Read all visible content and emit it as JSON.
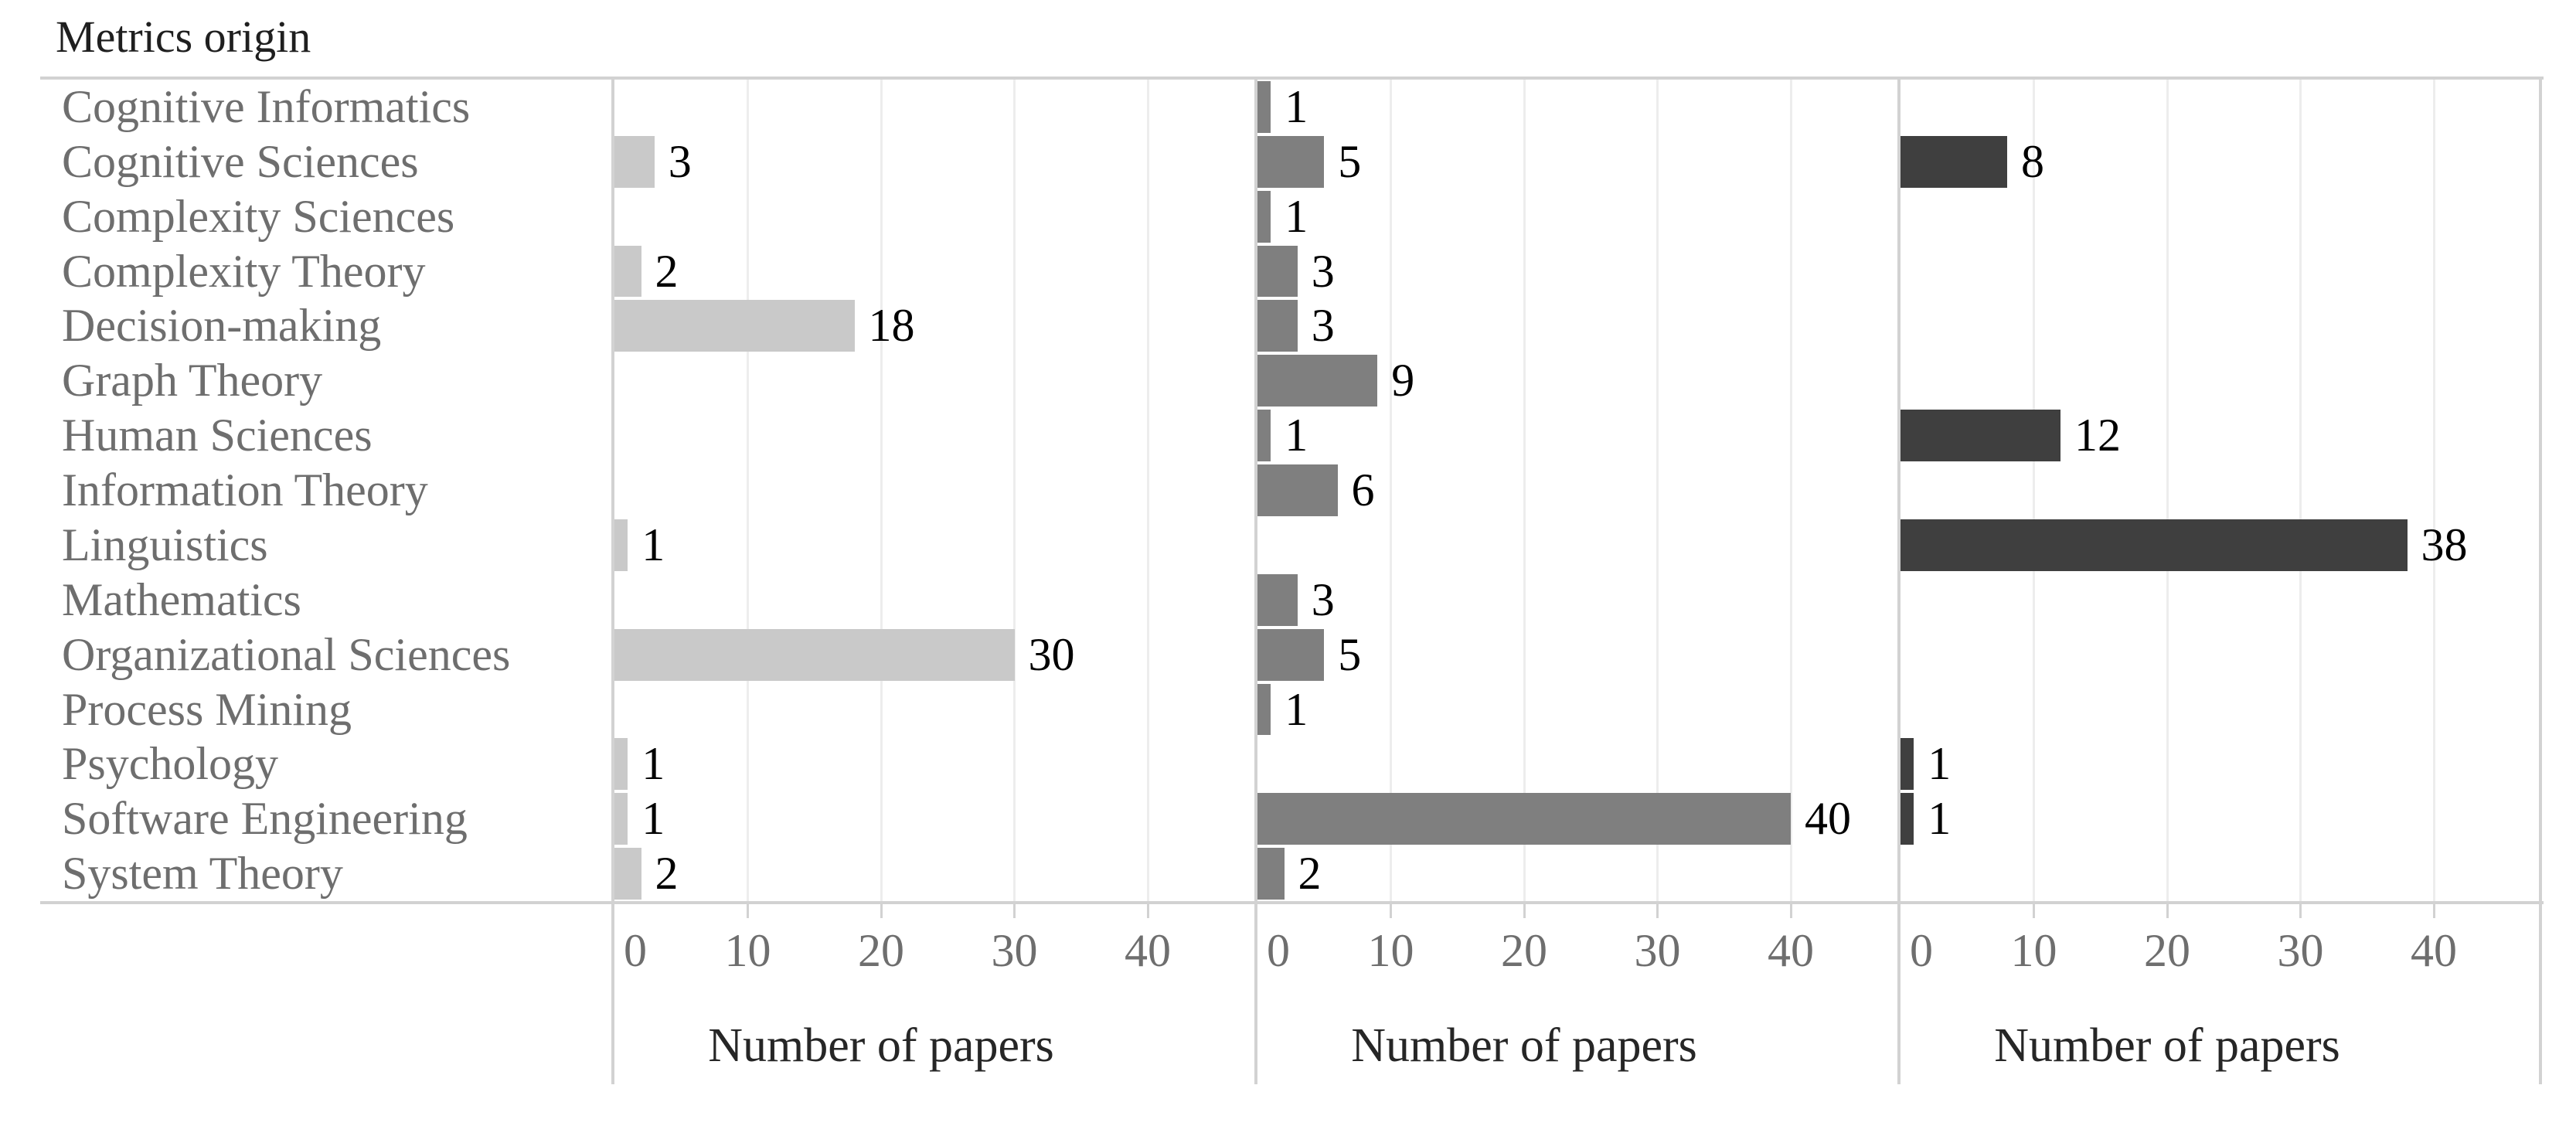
{
  "title": "Metrics origin",
  "chart_data": {
    "type": "bar",
    "orientation": "horizontal",
    "title": "Metrics origin",
    "categories": [
      "Cognitive Informatics",
      "Cognitive Sciences",
      "Complexity Sciences",
      "Complexity Theory",
      "Decision-making",
      "Graph Theory",
      "Human Sciences",
      "Information Theory",
      "Linguistics",
      "Mathematics",
      "Organizational Sciences",
      "Process Mining",
      "Psychology",
      "Software Engineering",
      "System Theory"
    ],
    "series": [
      {
        "name": "panel-1",
        "color": "#c9c9c9",
        "values": [
          null,
          3,
          null,
          2,
          18,
          null,
          null,
          null,
          1,
          null,
          30,
          null,
          1,
          1,
          2
        ]
      },
      {
        "name": "panel-2",
        "color": "#7f7f7f",
        "values": [
          1,
          5,
          1,
          3,
          3,
          9,
          1,
          6,
          null,
          3,
          5,
          1,
          null,
          40,
          2
        ]
      },
      {
        "name": "panel-3",
        "color": "#3f3f3f",
        "values": [
          null,
          8,
          null,
          null,
          null,
          null,
          12,
          null,
          38,
          null,
          null,
          null,
          1,
          1,
          null
        ]
      }
    ],
    "xlabel": "Number of papers",
    "x_ticks": [
      0,
      10,
      20,
      30,
      40
    ],
    "xlim": [
      0,
      48
    ],
    "grid": true,
    "legend": "none",
    "colors": {
      "axis_line": "#d2d2d2",
      "gridline": "#ededed",
      "category_text": "#6e6e6e",
      "tick_text": "#6e6e6e",
      "value_text": "#000000",
      "title_text": "#1f1f1f",
      "axis_title_text": "#262626"
    }
  }
}
